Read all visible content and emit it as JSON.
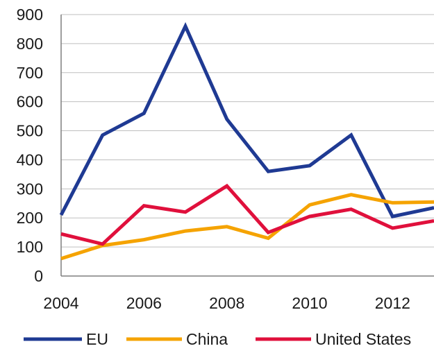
{
  "chart_data": {
    "type": "line",
    "title": "",
    "xlabel": "",
    "ylabel": "",
    "x": [
      2004,
      2005,
      2006,
      2007,
      2008,
      2009,
      2010,
      2011,
      2012,
      2013
    ],
    "x_tick_labels": [
      "2004",
      "2006",
      "2008",
      "2010",
      "2012"
    ],
    "y_tick_labels": [
      "0",
      "100",
      "200",
      "300",
      "400",
      "500",
      "600",
      "700",
      "800",
      "900"
    ],
    "xlim": [
      2004,
      2013
    ],
    "ylim": [
      0,
      900
    ],
    "grid": "horizontal",
    "legend_position": "bottom",
    "series": [
      {
        "name": "EU",
        "color": "#1f3a93",
        "values": [
          210,
          485,
          560,
          860,
          540,
          360,
          380,
          485,
          205,
          235
        ]
      },
      {
        "name": "China",
        "color": "#f5a300",
        "values": [
          60,
          105,
          125,
          155,
          170,
          130,
          245,
          280,
          252,
          255
        ]
      },
      {
        "name": "United States",
        "color": "#e0103c",
        "values": [
          145,
          110,
          242,
          220,
          310,
          150,
          205,
          230,
          165,
          190
        ]
      }
    ]
  }
}
